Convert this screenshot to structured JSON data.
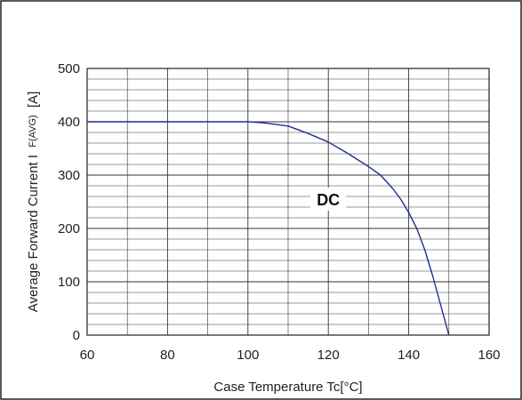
{
  "chart_data": {
    "type": "line",
    "xlabel": "Case Temperature  Tc[°C]",
    "ylabel_main": "Average Forward Current I",
    "ylabel_sub": "F(AVG)",
    "ylabel_unit": "[A]",
    "xlim": [
      60,
      160
    ],
    "ylim": [
      0,
      500
    ],
    "x_ticks": [
      60,
      80,
      100,
      120,
      140,
      160
    ],
    "y_ticks": [
      0,
      100,
      200,
      300,
      400,
      500
    ],
    "grid": true,
    "series": [
      {
        "x": [
          60,
          100,
          104,
          110,
          115,
          120,
          125,
          130,
          133,
          136,
          138,
          140,
          142,
          144,
          146,
          148,
          150
        ],
        "y": [
          400,
          400,
          398,
          392,
          378,
          362,
          340,
          316,
          300,
          275,
          255,
          230,
          200,
          160,
          110,
          55,
          0
        ],
        "color": "#1f2f8f"
      }
    ],
    "annotations": [
      {
        "text": "DC",
        "x": 120,
        "y": 255
      }
    ]
  }
}
